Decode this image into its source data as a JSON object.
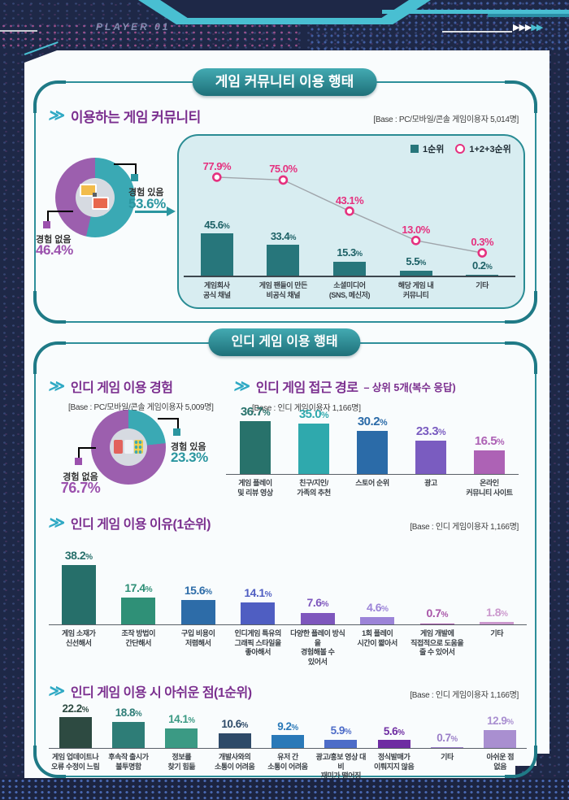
{
  "header": {
    "player_label": "PLAYER 01",
    "arrows_white": "▶▶▶",
    "arrows_teal": "▶▶"
  },
  "panel1": {
    "title": "게임 커뮤니티 이용 행태",
    "community": {
      "heading": "이용하는 게임 커뮤니티",
      "base": "[Base : PC/모바일/콘솔 게임이용자 5,014명]",
      "donut": {
        "pos_label": "경험 있음",
        "pos_value": "53.6%",
        "neg_label": "경험 없음",
        "neg_value": "46.4%"
      },
      "legend": {
        "rank1": "1순위",
        "rank123": "1+2+3순위"
      }
    }
  },
  "panel2": {
    "title": "인디 게임 이용 행태",
    "experience": {
      "heading": "인디 게임 이용 경험",
      "base": "[Base : PC/모바일/콘솔 게임이용자 5,009명]",
      "donut": {
        "pos_label": "경험 있음",
        "pos_value": "23.3%",
        "neg_label": "경험 없음",
        "neg_value": "76.7%"
      }
    },
    "access": {
      "heading": "인디 게임 접근 경로",
      "heading_suffix": "– 상위 5개(복수 응답)",
      "base": "[Base : 인디 게임이용자 1,166명]"
    },
    "reasons": {
      "heading": "인디 게임 이용 이유(1순위)",
      "base": "[Base : 인디 게임이용자 1,166명]"
    },
    "drawbacks": {
      "heading": "인디 게임 이용 시 아쉬운 점(1순위)",
      "base": "[Base : 인디 게임이용자 1,166명]"
    }
  },
  "theme": {
    "chevron_glyph": "≫",
    "navy": "#1e2847",
    "teal_accent": "#2e8f9a",
    "heading_purple": "#7b2f8f",
    "pink": "#e5317f",
    "donut_teal": "#3aa9b4",
    "donut_purple": "#9c5fae",
    "cyan_panel_bg": "#d8edf1",
    "bar_teal": "#27767b"
  },
  "chart_data": [
    {
      "id": "community-channel-usage",
      "type": "bar",
      "title": "이용하는 게임 커뮤니티",
      "categories": [
        "게임회사\n공식 채널",
        "게임 팬들이 만든\n비공식 채널",
        "소셜미디어\n(SNS, 메신저)",
        "해당 게임 내\n커뮤니티",
        "기타"
      ],
      "series": [
        {
          "name": "1순위",
          "type": "bar",
          "color": "#27767b",
          "label_color": "#1d6166",
          "values": [
            45.6,
            33.4,
            15.3,
            5.5,
            0.2
          ]
        },
        {
          "name": "1+2+3순위",
          "type": "line",
          "color": "#e5317f",
          "values": [
            77.9,
            75.0,
            43.1,
            13.0,
            0.3
          ]
        }
      ],
      "unit": "%",
      "ylim": [
        0,
        100
      ],
      "legend_position": "top-right",
      "grid": false
    },
    {
      "id": "community-experience",
      "type": "pie",
      "labels": [
        "경험 있음",
        "경험 없음"
      ],
      "values": [
        53.6,
        46.4
      ],
      "colors": [
        "#3aa9b4",
        "#9c5fae"
      ],
      "donut": true
    },
    {
      "id": "indie-experience",
      "type": "pie",
      "labels": [
        "경험 있음",
        "경험 없음"
      ],
      "values": [
        23.3,
        76.7
      ],
      "colors": [
        "#3aa9b4",
        "#9c5fae"
      ],
      "donut": true
    },
    {
      "id": "indie-access-paths",
      "type": "bar",
      "title": "인디 게임 접근 경로 – 상위 5개(복수 응답)",
      "categories": [
        "게임 플레이\n및 리뷰 영상",
        "친구/지인/\n가족의 추천",
        "스토어 순위",
        "광고",
        "온라인\n커뮤니티 사이트"
      ],
      "values": [
        36.7,
        35.0,
        30.2,
        23.3,
        16.5
      ],
      "colors": [
        "#28726b",
        "#2fa9ad",
        "#2b6ba8",
        "#7a5cc0",
        "#ad62b5"
      ],
      "unit": "%",
      "ylim": [
        0,
        40
      ],
      "grid": false
    },
    {
      "id": "indie-usage-reasons",
      "type": "bar",
      "title": "인디 게임 이용 이유(1순위)",
      "categories": [
        "게임 소재가\n신선해서",
        "조작 방법이\n간단해서",
        "구입 비용이\n저렴해서",
        "인디게임 특유의\n그래픽 스타일을\n좋아해서",
        "다양한 플레이 방식을\n경험해볼 수\n있어서",
        "1회 플레이\n시간이 짧아서",
        "게임 개발에\n직접적으로 도움을\n줄 수 있어서",
        "기타"
      ],
      "values": [
        38.2,
        17.4,
        15.6,
        14.1,
        7.6,
        4.6,
        0.7,
        1.8
      ],
      "colors": [
        "#266f6a",
        "#2f9077",
        "#2d6ca8",
        "#4f5ec2",
        "#7e57bd",
        "#9c84d8",
        "#a855a8",
        "#cb98cd"
      ],
      "unit": "%",
      "ylim": [
        0,
        40
      ],
      "grid": false
    },
    {
      "id": "indie-usage-drawbacks",
      "type": "bar",
      "title": "인디 게임 이용 시 아쉬운 점(1순위)",
      "categories": [
        "게임 업데이트나\n오류 수정이 느림",
        "후속작 출시가\n불투명함",
        "정보를\n찾기 힘듦",
        "개발사와의\n소통이 어려움",
        "유저 간\n소통이 어려움",
        "광고/홍보 영상 대비\n재미가 떨어짐",
        "정식발매가\n이뤄지지 않음",
        "기타",
        "아쉬운 점\n없음"
      ],
      "values": [
        22.2,
        18.8,
        14.1,
        10.6,
        9.2,
        5.9,
        5.6,
        0.7,
        12.9
      ],
      "colors": [
        "#2d4a41",
        "#2e7d77",
        "#3b9a84",
        "#2e4a68",
        "#2a79b8",
        "#4d6cc8",
        "#6e2da2",
        "#9b7fc8",
        "#a98fd0"
      ],
      "unit": "%",
      "ylim": [
        0,
        25
      ],
      "grid": false
    }
  ]
}
